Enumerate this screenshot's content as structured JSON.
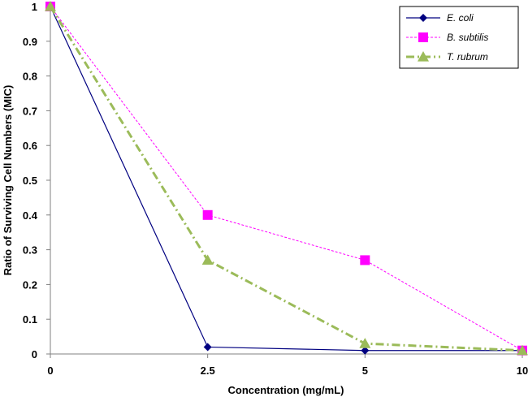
{
  "chart_data": {
    "type": "line",
    "categories": [
      "0",
      "2.5",
      "5",
      "10"
    ],
    "xlabel": "Concentration (mg/mL)",
    "ylabel": "Ratio of Surviving Cell Numbers (MIC)",
    "ylim": [
      0,
      1
    ],
    "yticks": [
      "0",
      "0.1",
      "0.2",
      "0.3",
      "0.4",
      "0.5",
      "0.6",
      "0.7",
      "0.8",
      "0.9",
      "1"
    ],
    "grid": false,
    "legend_position": "top-right",
    "series": [
      {
        "name": "E. coli",
        "values": [
          1.0,
          0.02,
          0.01,
          0.01
        ],
        "color": "#000080",
        "marker": "diamond",
        "line": "solid"
      },
      {
        "name": "B. subtilis",
        "values": [
          1.0,
          0.4,
          0.27,
          0.01
        ],
        "color": "#FF00FF",
        "marker": "square",
        "line": "dashed"
      },
      {
        "name": "T. rubrum",
        "values": [
          1.0,
          0.27,
          0.03,
          0.01
        ],
        "color": "#9BBB59",
        "marker": "triangle",
        "line": "dashdot"
      }
    ]
  }
}
